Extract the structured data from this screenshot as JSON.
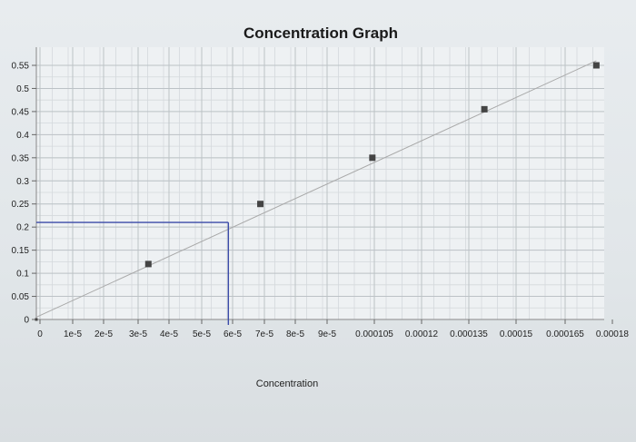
{
  "chart_data": {
    "type": "scatter",
    "title": "Concentration Graph",
    "xlabel": "Concentration",
    "ylabel": "",
    "x_ticks": [
      "0",
      "1e-5",
      "2e-5",
      "3e-5",
      "4e-5",
      "5e-5",
      "6e-5",
      "7e-5",
      "8e-5",
      "9e-5",
      "0.000105",
      "0.00012",
      "0.000135",
      "0.00015",
      "0.000165",
      "0.00018"
    ],
    "y_ticks": [
      "0",
      "0.05",
      "0.1",
      "0.15",
      "0.2",
      "0.25",
      "0.3",
      "0.35",
      "0.4",
      "0.45",
      "0.5",
      "0.55"
    ],
    "ylim": [
      0,
      0.55
    ],
    "grid": true,
    "legend": "none",
    "series": [
      {
        "points": [
          {
            "x": 0,
            "y": 0
          },
          {
            "x": 3.5e-05,
            "y": 0.12
          },
          {
            "x": 7e-05,
            "y": 0.25
          },
          {
            "x": 0.000105,
            "y": 0.35
          },
          {
            "x": 0.00014,
            "y": 0.455
          },
          {
            "x": 0.000175,
            "y": 0.55
          }
        ],
        "color": "#444444"
      }
    ],
    "trendline": {
      "x": [
        0,
        0.000175
      ],
      "y": [
        0.005,
        0.56
      ],
      "color": "#a9a9a9"
    },
    "annotation_lines": {
      "x": 6e-05,
      "y": 0.21,
      "color": "#3a4aa8"
    }
  }
}
